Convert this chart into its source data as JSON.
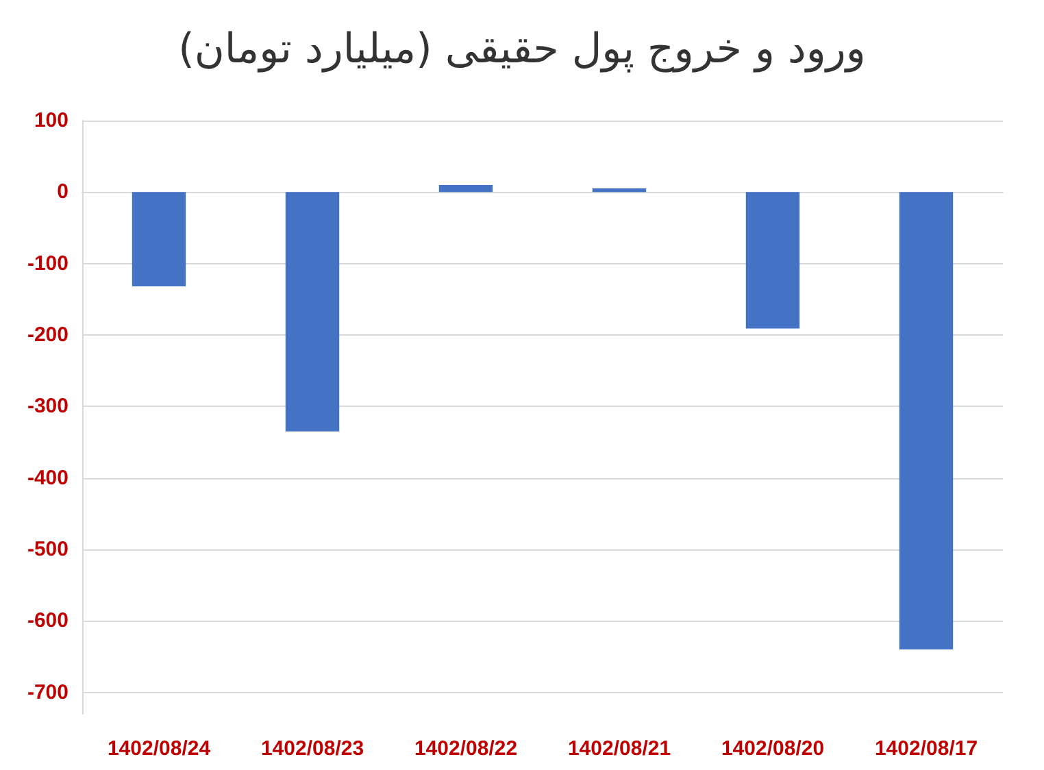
{
  "chart_data": {
    "type": "bar",
    "title": "ورود و خروج پول حقیقی (میلیارد تومان)",
    "categories": [
      "1402/08/24",
      "1402/08/23",
      "1402/08/22",
      "1402/08/21",
      "1402/08/20",
      "1402/08/17"
    ],
    "values": [
      -132,
      -335,
      10,
      5,
      -191,
      -640
    ],
    "color": "#4472c4",
    "ylim": [
      -730,
      100
    ],
    "yticks": [
      -700,
      -600,
      -500,
      -400,
      -300,
      -200,
      -100,
      0,
      100
    ],
    "grid": "y"
  }
}
